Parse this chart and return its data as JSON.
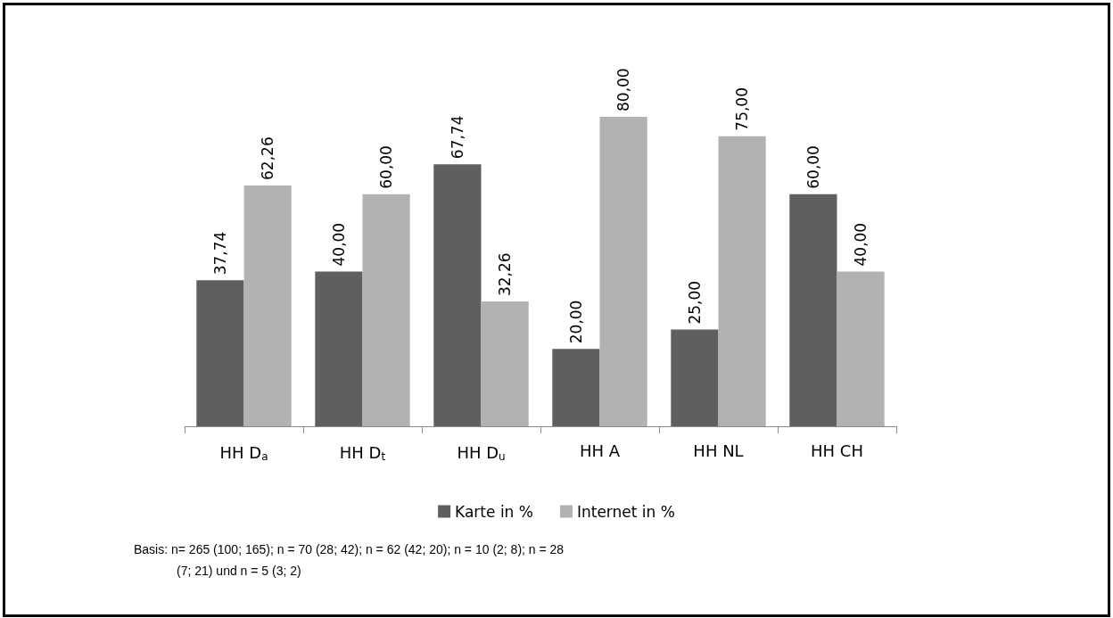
{
  "chart_data": {
    "type": "bar",
    "categories": [
      "HH D$_{a}$",
      "HH D$_{t}$",
      "HH D$_{u}$",
      "HH A",
      "HH NL",
      "HH CH"
    ],
    "series": [
      {
        "name": "Karte in %",
        "color": "#5f5f5f",
        "values": [
          37.74,
          40.0,
          67.74,
          20.0,
          25.0,
          60.0
        ],
        "value_labels": [
          "37,74",
          "40,00",
          "67,74",
          "20,00",
          "25,00",
          "60,00"
        ]
      },
      {
        "name": "Internet in %",
        "color": "#b2b2b2",
        "values": [
          62.26,
          60.0,
          32.26,
          80.0,
          75.0,
          40.0
        ],
        "value_labels": [
          "62,26",
          "60,00",
          "32,26",
          "80,00",
          "75,00",
          "40,00"
        ]
      }
    ],
    "legend": "bottom",
    "annotations": [
      "Basis: n= 265 (100; 165); n = 70 (28; 42); n = 62 (42; 20); n = 10 (2; 8); n = 28 (7; 21) und n = 5 (3; 2)"
    ]
  }
}
